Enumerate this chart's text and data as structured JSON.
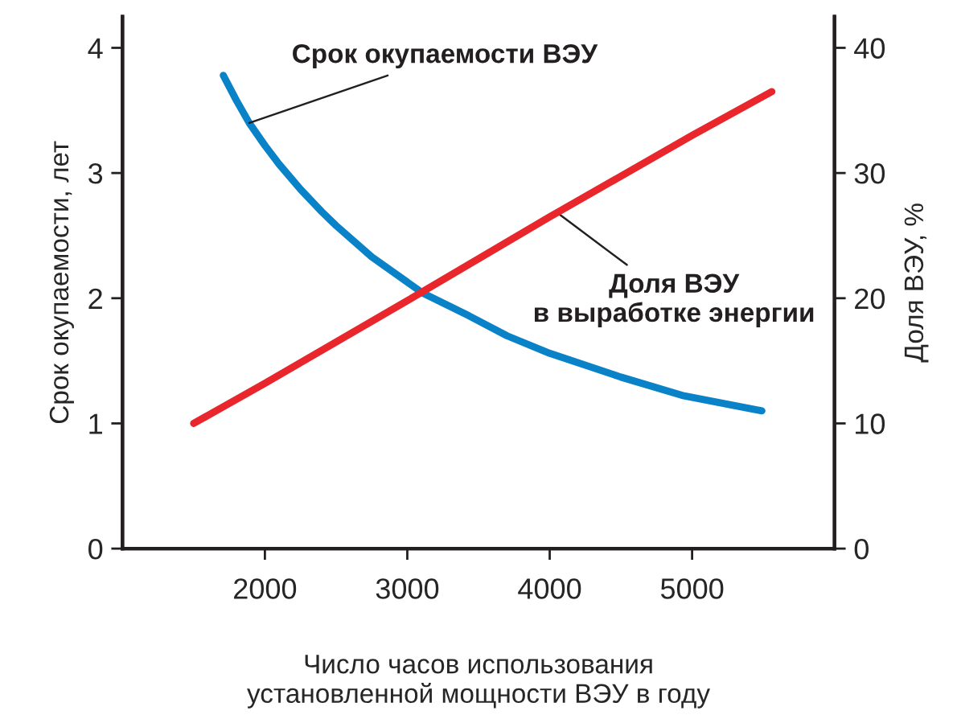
{
  "chart_data": {
    "type": "line",
    "xlabel": "Число часов использования\nустановленной мощности ВЭУ в году",
    "ylabel": "Срок окупаемости, лет",
    "y2label": "Доля ВЭУ, %",
    "xlim": [
      1000,
      6000
    ],
    "xticks": [
      2000,
      3000,
      4000,
      5000
    ],
    "ylim": [
      0,
      4.25
    ],
    "yticks": [
      0,
      1,
      2,
      3,
      4
    ],
    "y2lim": [
      0,
      42.5
    ],
    "y2ticks": [
      0,
      10,
      20,
      30,
      40
    ],
    "grid": false,
    "legend": false,
    "marker": "none",
    "line_style": "solid",
    "series": [
      {
        "color": "#0a82c8",
        "x": [
          1708,
          1800,
          1890,
          2000,
          2100,
          2250,
          2400,
          2500,
          2750,
          3110,
          3432,
          3700,
          4000,
          4500,
          4943,
          5490
        ],
        "values": [
          3.78,
          3.58,
          3.4,
          3.22,
          3.07,
          2.87,
          2.69,
          2.58,
          2.33,
          2.04,
          1.86,
          1.7,
          1.56,
          1.37,
          1.22,
          1.1
        ]
      },
      {
        "color": "#e8262b",
        "axis": "y2",
        "x": [
          1500,
          2000,
          3000,
          4000,
          5000,
          5560
        ],
        "values": [
          10,
          13.2,
          19.8,
          26.5,
          33,
          36.5
        ]
      }
    ],
    "annotations": [
      {
        "text": "Срок окупаемости ВЭУ",
        "x": 1890,
        "y": 3.4
      },
      {
        "text": "Доля ВЭУ\nв выработке энергии",
        "x": 4057,
        "y": 2.68
      }
    ]
  }
}
